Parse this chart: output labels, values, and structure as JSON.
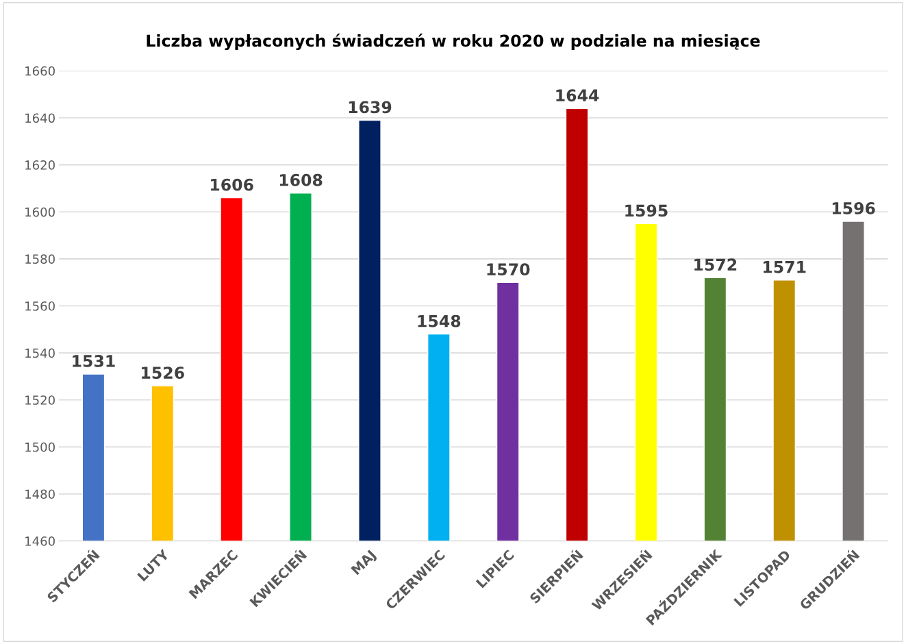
{
  "chart_data": {
    "type": "bar",
    "title": "Liczba wypłaconych świadczeń w roku 2020 w podziale na miesiące",
    "categories": [
      "STYCZEŃ",
      "LUTY",
      "MARZEC",
      "KWIECIEŃ",
      "MAJ",
      "CZERWIEC",
      "LIPIEC",
      "SIERPIEŃ",
      "WRZESIEŃ",
      "PAŹDZIERNIK",
      "LISTOPAD",
      "GRUDZIEŃ"
    ],
    "values": [
      1531,
      1526,
      1606,
      1608,
      1639,
      1548,
      1570,
      1644,
      1595,
      1572,
      1571,
      1596
    ],
    "colors": [
      "#4472c4",
      "#ffc000",
      "#ff0000",
      "#00b050",
      "#002060",
      "#00b0f0",
      "#7030a0",
      "#c00000",
      "#ffff00",
      "#548235",
      "#bf9000",
      "#767171"
    ],
    "ylim": [
      1460,
      1660
    ],
    "yticks": [
      1460,
      1480,
      1500,
      1520,
      1540,
      1560,
      1580,
      1600,
      1620,
      1640,
      1660
    ],
    "grid": "y",
    "data_labels": true
  }
}
